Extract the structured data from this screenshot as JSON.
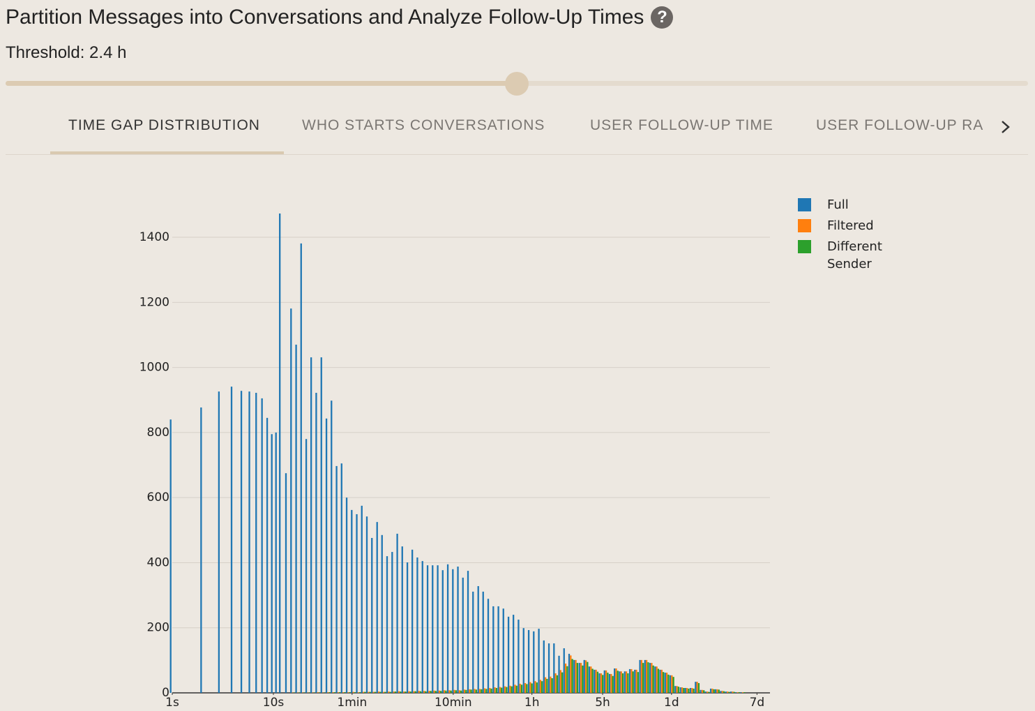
{
  "header": {
    "title": "Partition Messages into Conversations and Analyze Follow-Up Times",
    "help": "?",
    "threshold": "Threshold: 2.4 h"
  },
  "tabs": [
    "TIME GAP DISTRIBUTION",
    "WHO STARTS CONVERSATIONS",
    "USER FOLLOW-UP TIME",
    "USER FOLLOW-UP RA"
  ],
  "chart_data": {
    "type": "bar",
    "xscale": "log",
    "grid": true,
    "legend": "right",
    "xlim": [
      1,
      813000
    ],
    "xticks": [
      {
        "value": 1,
        "label": "1s"
      },
      {
        "value": 10,
        "label": "10s"
      },
      {
        "value": 60,
        "label": "1min"
      },
      {
        "value": 600,
        "label": "10min"
      },
      {
        "value": 3600,
        "label": "1h"
      },
      {
        "value": 18000,
        "label": "5h"
      },
      {
        "value": 86400,
        "label": "1d"
      },
      {
        "value": 604800,
        "label": "7d"
      }
    ],
    "ylim": [
      0,
      1530
    ],
    "yticks": [
      0,
      200,
      400,
      600,
      800,
      1000,
      1200,
      1400
    ],
    "x": [
      1,
      2,
      3,
      4,
      5,
      6,
      7,
      8,
      9,
      10,
      11,
      12,
      13.8,
      15.5,
      17.4,
      19.5,
      21.9,
      24.5,
      27.5,
      30.9,
      34.7,
      38.9,
      43.7,
      49,
      55,
      61.7,
      69.2,
      77.6,
      87.1,
      97.7,
      110,
      123,
      138,
      155,
      174,
      195,
      219,
      245,
      275,
      309,
      347,
      389,
      437,
      490,
      550,
      617,
      692,
      776,
      871,
      977,
      1100,
      1230,
      1380,
      1550,
      1740,
      1950,
      2190,
      2450,
      2750,
      3090,
      3470,
      3890,
      4370,
      4900,
      5500,
      6170,
      6920,
      7760,
      8710,
      9770,
      11000,
      12300,
      13800,
      15500,
      17400,
      19500,
      21900,
      24500,
      27500,
      30900,
      34700,
      38900,
      43700,
      49000,
      55000,
      61700,
      69200,
      77600,
      87100,
      97700,
      110000,
      123000,
      138000,
      155000,
      174000,
      195000,
      219000,
      245000,
      275000,
      309000,
      347000,
      389000,
      437000
    ],
    "series": [
      {
        "name": "Full",
        "color": "#1f77b4",
        "values": [
          840,
          877,
          926,
          941,
          928,
          926,
          922,
          905,
          845,
          795,
          800,
          1473,
          675,
          1181,
          1070,
          1381,
          780,
          1031,
          922,
          1031,
          843,
          898,
          697,
          705,
          600,
          562,
          549,
          575,
          542,
          476,
          525,
          485,
          420,
          433,
          489,
          450,
          401,
          440,
          416,
          405,
          392,
          392,
          392,
          377,
          395,
          380,
          388,
          354,
          375,
          311,
          328,
          311,
          289,
          266,
          266,
          259,
          234,
          240,
          225,
          199,
          193,
          189,
          197,
          161,
          152,
          152,
          114,
          137,
          120,
          101,
          92,
          101,
          81,
          71,
          60,
          69,
          58,
          75,
          66,
          66,
          73,
          71,
          101,
          101,
          92,
          81,
          71,
          62,
          54,
          21,
          17,
          15,
          15,
          34,
          9,
          4,
          13,
          11,
          6,
          4,
          4,
          2,
          2
        ]
      },
      {
        "name": "Filtered",
        "color": "#ff7f0e",
        "values": [
          0,
          0,
          0,
          0,
          0,
          0,
          0,
          0,
          0,
          0,
          0,
          0,
          0,
          1,
          1,
          1,
          1,
          1,
          2,
          1,
          2,
          2,
          2,
          2,
          2,
          3,
          2,
          3,
          3,
          3,
          4,
          3,
          4,
          4,
          5,
          4,
          5,
          5,
          6,
          6,
          6,
          7,
          7,
          8,
          8,
          9,
          8,
          10,
          11,
          12,
          12,
          14,
          15,
          17,
          18,
          20,
          22,
          25,
          28,
          30,
          33,
          36,
          40,
          48,
          50,
          60,
          70,
          90,
          115,
          101,
          92,
          100,
          81,
          71,
          60,
          69,
          58,
          75,
          66,
          66,
          73,
          71,
          101,
          101,
          92,
          81,
          71,
          62,
          54,
          21,
          17,
          15,
          15,
          34,
          9,
          4,
          13,
          11,
          6,
          4,
          4,
          2,
          2
        ]
      },
      {
        "name": "Different Sender",
        "color": "#2ca02c",
        "values": [
          0,
          0,
          0,
          0,
          0,
          0,
          0,
          0,
          0,
          0,
          0,
          0,
          0,
          1,
          1,
          1,
          1,
          1,
          1,
          1,
          2,
          2,
          2,
          2,
          2,
          2,
          2,
          3,
          3,
          3,
          3,
          3,
          3,
          4,
          4,
          4,
          4,
          5,
          5,
          5,
          6,
          6,
          6,
          7,
          7,
          8,
          7,
          9,
          10,
          10,
          11,
          12,
          13,
          15,
          16,
          18,
          20,
          22,
          25,
          27,
          29,
          32,
          36,
          43,
          45,
          54,
          63,
          82,
          104,
          92,
          84,
          95,
          74,
          65,
          55,
          62,
          52,
          68,
          60,
          60,
          66,
          64,
          92,
          94,
          84,
          74,
          64,
          56,
          49,
          19,
          15,
          13,
          13,
          30,
          8,
          3,
          11,
          10,
          5,
          3,
          3,
          2,
          2
        ]
      }
    ]
  }
}
